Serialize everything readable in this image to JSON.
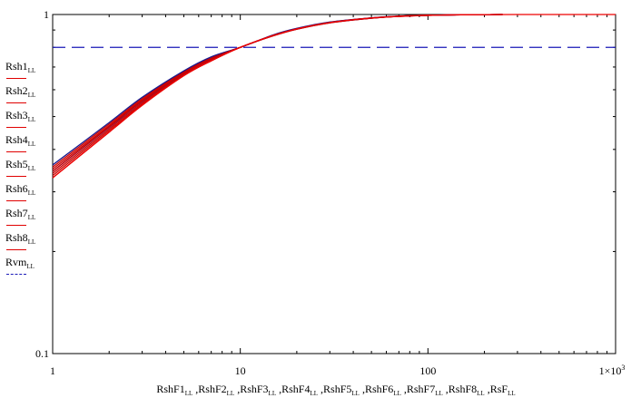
{
  "chart_data": {
    "type": "line",
    "x_scale": "log",
    "y_scale": "log",
    "xlim": [
      1,
      1000
    ],
    "ylim": [
      0.1,
      1
    ],
    "x_ticks": [
      "1",
      "10",
      "100",
      "1×10³"
    ],
    "y_ticks": [
      "0.1",
      "1"
    ],
    "xlabel_parts": [
      "RshF1",
      "RshF2",
      "RshF3",
      "RshF4",
      "RshF5",
      "RshF6",
      "RshF7",
      "RshF8",
      "RsF"
    ],
    "subscript": "LL",
    "legend_position": "left",
    "series": [
      {
        "name": "Rsh1",
        "color": "#cc0000",
        "x": [
          1,
          2,
          3,
          5,
          7,
          10,
          15,
          20,
          30,
          50,
          70,
          100,
          150,
          200,
          250
        ],
        "y": [
          0.33,
          0.45,
          0.54,
          0.66,
          0.73,
          0.8,
          0.865,
          0.905,
          0.945,
          0.975,
          0.987,
          0.994,
          0.998,
          0.999,
          1.0
        ]
      },
      {
        "name": "Rsh2",
        "color": "#cc0000",
        "x": [
          1,
          2,
          3,
          5,
          7,
          10,
          15,
          20,
          30,
          50,
          70,
          100,
          150,
          200,
          250
        ],
        "y": [
          0.335,
          0.455,
          0.545,
          0.665,
          0.735,
          0.8,
          0.866,
          0.905,
          0.945,
          0.975,
          0.987,
          0.994,
          0.998,
          0.999,
          1.0
        ]
      },
      {
        "name": "Rsh3",
        "color": "#cc0000",
        "x": [
          1,
          2,
          3,
          5,
          7,
          10,
          15,
          20,
          30,
          50,
          70,
          100,
          150,
          200,
          250
        ],
        "y": [
          0.34,
          0.46,
          0.55,
          0.67,
          0.74,
          0.8,
          0.867,
          0.906,
          0.946,
          0.976,
          0.987,
          0.994,
          0.998,
          0.999,
          1.0
        ]
      },
      {
        "name": "Rsh4",
        "color": "#1a1a8c",
        "x": [
          1,
          2,
          3,
          5,
          7,
          10,
          15,
          20,
          30,
          50,
          70,
          100,
          150,
          200,
          250
        ],
        "y": [
          0.345,
          0.465,
          0.555,
          0.672,
          0.742,
          0.8,
          0.868,
          0.907,
          0.947,
          0.976,
          0.988,
          0.995,
          0.998,
          0.999,
          1.0
        ]
      },
      {
        "name": "Rsh5",
        "color": "#cc0000",
        "x": [
          1,
          2,
          3,
          5,
          7,
          10,
          15,
          20,
          30,
          50,
          70,
          100,
          150,
          200,
          250
        ],
        "y": [
          0.35,
          0.47,
          0.56,
          0.675,
          0.745,
          0.8,
          0.869,
          0.908,
          0.948,
          0.977,
          0.988,
          0.995,
          0.998,
          0.999,
          1.0
        ]
      },
      {
        "name": "Rsh6",
        "color": "#cc0000",
        "x": [
          1,
          2,
          3,
          5,
          7,
          10,
          15,
          20,
          30,
          50,
          70,
          100,
          150,
          200,
          250
        ],
        "y": [
          0.355,
          0.475,
          0.565,
          0.678,
          0.748,
          0.8,
          0.87,
          0.909,
          0.949,
          0.977,
          0.988,
          0.995,
          0.998,
          0.999,
          1.0
        ]
      },
      {
        "name": "Rsh7",
        "color": "#1a1a8c",
        "x": [
          1,
          2,
          3,
          5,
          7,
          10,
          15,
          20,
          30,
          50,
          70,
          100,
          150,
          200,
          250
        ],
        "y": [
          0.36,
          0.48,
          0.57,
          0.682,
          0.75,
          0.8,
          0.871,
          0.91,
          0.95,
          0.978,
          0.989,
          0.995,
          0.998,
          0.999,
          1.0
        ]
      },
      {
        "name": "Rsh8",
        "color": "#cc0000",
        "x": [
          1,
          2,
          3,
          5,
          7,
          10,
          15,
          20,
          30,
          50,
          70,
          100,
          150,
          200,
          250
        ],
        "y": [
          0.345,
          0.466,
          0.556,
          0.672,
          0.742,
          0.8,
          0.868,
          0.907,
          0.947,
          0.976,
          0.988,
          0.995,
          0.998,
          0.999,
          1.0
        ]
      },
      {
        "name": "Rvm",
        "color": "#1a1ab8",
        "dashed": true,
        "x": [
          1,
          1000
        ],
        "y": [
          0.8,
          0.8
        ]
      },
      {
        "color": "#ee0000",
        "x": [
          1,
          2,
          3,
          5,
          7,
          10,
          15,
          20,
          30,
          50,
          70,
          100,
          150,
          200,
          300,
          500,
          1000
        ],
        "y": [
          0.33,
          0.45,
          0.54,
          0.66,
          0.73,
          0.8,
          0.867,
          0.907,
          0.947,
          0.977,
          0.988,
          0.995,
          0.998,
          0.999,
          1.0,
          1.0,
          1.0
        ]
      }
    ]
  }
}
